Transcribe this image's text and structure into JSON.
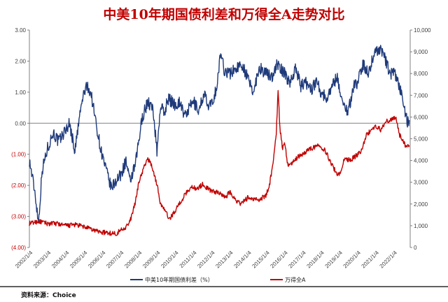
{
  "chart_data": {
    "type": "line",
    "title": "中美10年期国债利差和万得全A走势对比",
    "source": "资料来源：Choice",
    "x_labels": [
      "2002/1/4",
      "2003/1/4",
      "2004/1/4",
      "2005/1/4",
      "2006/1/4",
      "2007/1/4",
      "2008/1/4",
      "2009/1/4",
      "2010/1/4",
      "2011/1/4",
      "2012/1/4",
      "2013/1/4",
      "2014/1/4",
      "2015/1/4",
      "2016/1/4",
      "2017/1/4",
      "2018/1/4",
      "2019/1/4",
      "2020/1/4",
      "2021/1/4",
      "2022/1/4"
    ],
    "y_left": {
      "ticks": [
        "3.00",
        "2.00",
        "1.00",
        "0.00",
        "(1.00)",
        "(2.00)",
        "(3.00)",
        "(4.00)"
      ],
      "values": [
        3,
        2,
        1,
        0,
        -1,
        -2,
        -3,
        -4
      ],
      "range": [
        -4,
        3
      ]
    },
    "y_right": {
      "ticks": [
        "10,000",
        "9,000",
        "8,000",
        "7,000",
        "6,000",
        "5,000",
        "4,000",
        "3,000",
        "2,000",
        "1,000",
        "0"
      ],
      "values": [
        10000,
        9000,
        8000,
        7000,
        6000,
        5000,
        4000,
        3000,
        2000,
        1000,
        0
      ],
      "range": [
        0,
        10000
      ]
    },
    "series": [
      {
        "name": "中美10年期国债利差（%）",
        "axis": "left",
        "color": "#1f3a7a",
        "points": [
          [
            2002.0,
            -1.2
          ],
          [
            2002.3,
            -2.2
          ],
          [
            2002.5,
            -3.2
          ],
          [
            2002.7,
            -1.5
          ],
          [
            2003.0,
            -0.8
          ],
          [
            2003.3,
            -0.3
          ],
          [
            2003.6,
            -0.6
          ],
          [
            2004.0,
            -0.2
          ],
          [
            2004.2,
            0.0
          ],
          [
            2004.5,
            -0.9
          ],
          [
            2004.8,
            0.4
          ],
          [
            2005.0,
            1.0
          ],
          [
            2005.2,
            1.2
          ],
          [
            2005.4,
            0.9
          ],
          [
            2005.6,
            0.2
          ],
          [
            2005.9,
            -0.8
          ],
          [
            2006.2,
            -1.5
          ],
          [
            2006.5,
            -2.1
          ],
          [
            2006.8,
            -1.8
          ],
          [
            2007.0,
            -1.7
          ],
          [
            2007.3,
            -1.2
          ],
          [
            2007.5,
            -1.9
          ],
          [
            2007.8,
            -1.4
          ],
          [
            2008.0,
            -0.6
          ],
          [
            2008.2,
            0.2
          ],
          [
            2008.5,
            0.7
          ],
          [
            2008.8,
            0.4
          ],
          [
            2009.0,
            -0.9
          ],
          [
            2009.2,
            0.6
          ],
          [
            2009.4,
            0.3
          ],
          [
            2009.6,
            0.8
          ],
          [
            2010.0,
            0.6
          ],
          [
            2010.3,
            0.7
          ],
          [
            2010.5,
            0.2
          ],
          [
            2010.8,
            0.5
          ],
          [
            2011.0,
            0.7
          ],
          [
            2011.3,
            0.4
          ],
          [
            2011.6,
            1.0
          ],
          [
            2011.8,
            0.5
          ],
          [
            2012.0,
            0.6
          ],
          [
            2012.3,
            1.2
          ],
          [
            2012.5,
            2.3
          ],
          [
            2012.7,
            1.7
          ],
          [
            2013.0,
            1.6
          ],
          [
            2013.4,
            1.8
          ],
          [
            2013.7,
            1.9
          ],
          [
            2014.0,
            1.4
          ],
          [
            2014.3,
            1.0
          ],
          [
            2014.6,
            1.8
          ],
          [
            2015.0,
            1.6
          ],
          [
            2015.3,
            1.5
          ],
          [
            2015.6,
            1.9
          ],
          [
            2016.0,
            1.6
          ],
          [
            2016.3,
            1.3
          ],
          [
            2016.6,
            1.8
          ],
          [
            2016.9,
            1.2
          ],
          [
            2017.2,
            1.3
          ],
          [
            2017.5,
            1.1
          ],
          [
            2017.8,
            1.4
          ],
          [
            2018.0,
            1.0
          ],
          [
            2018.3,
            0.8
          ],
          [
            2018.6,
            1.2
          ],
          [
            2018.9,
            1.5
          ],
          [
            2019.2,
            0.6
          ],
          [
            2019.5,
            0.4
          ],
          [
            2019.8,
            1.2
          ],
          [
            2020.0,
            1.3
          ],
          [
            2020.3,
            1.9
          ],
          [
            2020.6,
            1.6
          ],
          [
            2020.9,
            2.2
          ],
          [
            2021.0,
            2.3
          ],
          [
            2021.2,
            2.4
          ],
          [
            2021.4,
            2.3
          ],
          [
            2021.6,
            1.9
          ],
          [
            2021.8,
            1.6
          ],
          [
            2022.0,
            1.6
          ],
          [
            2022.2,
            1.4
          ],
          [
            2022.4,
            1.0
          ],
          [
            2022.6,
            0.4
          ],
          [
            2022.75,
            0.0
          ],
          [
            2022.85,
            0.1
          ]
        ]
      },
      {
        "name": "万得全A",
        "axis": "right",
        "color": "#c00000",
        "points": [
          [
            2002.0,
            1100
          ],
          [
            2002.5,
            1200
          ],
          [
            2003.0,
            1100
          ],
          [
            2003.5,
            1100
          ],
          [
            2004.0,
            1000
          ],
          [
            2004.5,
            1050
          ],
          [
            2005.0,
            950
          ],
          [
            2005.5,
            800
          ],
          [
            2006.0,
            700
          ],
          [
            2006.5,
            650
          ],
          [
            2006.8,
            650
          ],
          [
            2007.0,
            800
          ],
          [
            2007.3,
            950
          ],
          [
            2007.5,
            1150
          ],
          [
            2007.8,
            2000
          ],
          [
            2008.0,
            3000
          ],
          [
            2008.3,
            3700
          ],
          [
            2008.5,
            4100
          ],
          [
            2008.7,
            3800
          ],
          [
            2009.0,
            2900
          ],
          [
            2009.2,
            2000
          ],
          [
            2009.5,
            1600
          ],
          [
            2009.7,
            1300
          ],
          [
            2010.0,
            1700
          ],
          [
            2010.3,
            2100
          ],
          [
            2010.6,
            2500
          ],
          [
            2010.9,
            2800
          ],
          [
            2011.2,
            2700
          ],
          [
            2011.5,
            2900
          ],
          [
            2011.8,
            2700
          ],
          [
            2012.0,
            2600
          ],
          [
            2012.5,
            2500
          ],
          [
            2012.8,
            2300
          ],
          [
            2013.0,
            2600
          ],
          [
            2013.3,
            2200
          ],
          [
            2013.6,
            2000
          ],
          [
            2014.0,
            2300
          ],
          [
            2014.3,
            2200
          ],
          [
            2014.6,
            2200
          ],
          [
            2015.0,
            2400
          ],
          [
            2015.2,
            3000
          ],
          [
            2015.4,
            4000
          ],
          [
            2015.55,
            5300
          ],
          [
            2015.65,
            7200
          ],
          [
            2015.75,
            5500
          ],
          [
            2015.9,
            4500
          ],
          [
            2016.0,
            4900
          ],
          [
            2016.2,
            3700
          ],
          [
            2016.5,
            4000
          ],
          [
            2016.8,
            4200
          ],
          [
            2017.0,
            4300
          ],
          [
            2017.3,
            4500
          ],
          [
            2017.6,
            4600
          ],
          [
            2017.9,
            4700
          ],
          [
            2018.2,
            4500
          ],
          [
            2018.5,
            4000
          ],
          [
            2018.8,
            3500
          ],
          [
            2019.0,
            3300
          ],
          [
            2019.3,
            4100
          ],
          [
            2019.6,
            4000
          ],
          [
            2019.9,
            4200
          ],
          [
            2020.2,
            4400
          ],
          [
            2020.5,
            5200
          ],
          [
            2020.8,
            5400
          ],
          [
            2021.0,
            5600
          ],
          [
            2021.3,
            5400
          ],
          [
            2021.6,
            5800
          ],
          [
            2021.9,
            5900
          ],
          [
            2022.1,
            6000
          ],
          [
            2022.3,
            5200
          ],
          [
            2022.5,
            4900
          ],
          [
            2022.7,
            4600
          ],
          [
            2022.85,
            4700
          ]
        ]
      }
    ],
    "legend_position": "bottom",
    "grid": false
  }
}
